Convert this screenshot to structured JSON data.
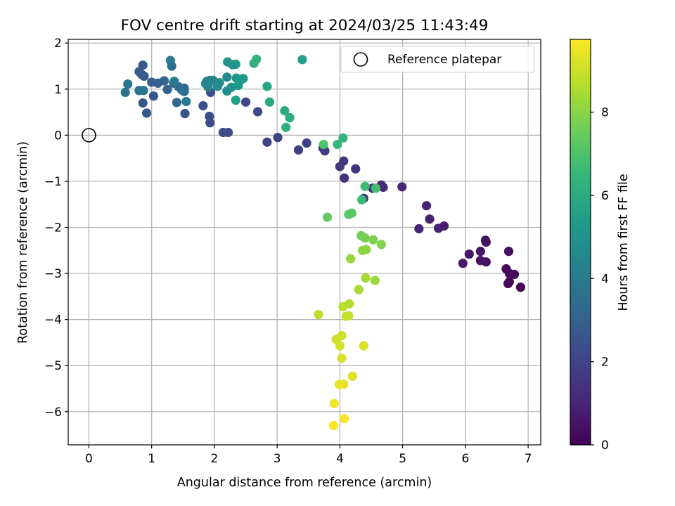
{
  "chart_data": {
    "type": "scatter",
    "title": "FOV centre drift starting at 2024/03/25 11:43:49",
    "xlabel": "Angular distance from reference (arcmin)",
    "ylabel": "Rotation from reference (arcmin)",
    "xlim": [
      -0.33,
      7.2
    ],
    "ylim": [
      -6.72,
      2.08
    ],
    "xticks": [
      0,
      1,
      2,
      3,
      4,
      5,
      6,
      7
    ],
    "yticks": [
      2,
      1,
      0,
      -1,
      -2,
      -3,
      -4,
      -5,
      -6
    ],
    "ytick_labels": [
      "2",
      "1",
      "0",
      "−1",
      "−2",
      "−3",
      "−4",
      "−5",
      "−6"
    ],
    "grid": true,
    "legend": {
      "position": "top-right",
      "entries": [
        "Reference platepar"
      ]
    },
    "reference_point": {
      "x": 0,
      "y": 0
    },
    "colorbar": {
      "label": "Hours from first FF file",
      "range": [
        0,
        9.75
      ],
      "ticks": [
        0,
        2,
        4,
        6,
        8
      ],
      "colormap": "viridis",
      "stops": [
        "#440154",
        "#482878",
        "#3e4989",
        "#31688e",
        "#26828e",
        "#1f9e89",
        "#35b779",
        "#6ece58",
        "#b5de2b",
        "#fde725"
      ]
    },
    "points": [
      {
        "x": 6.88,
        "y": -3.3,
        "h": 0.1
      },
      {
        "x": 6.7,
        "y": -3.18,
        "h": 0.15
      },
      {
        "x": 6.68,
        "y": -3.22,
        "h": 0.2
      },
      {
        "x": 6.78,
        "y": -3.02,
        "h": 0.25
      },
      {
        "x": 6.7,
        "y": -3.0,
        "h": 0.28
      },
      {
        "x": 6.65,
        "y": -2.9,
        "h": 0.3
      },
      {
        "x": 6.69,
        "y": -2.52,
        "h": 0.35
      },
      {
        "x": 6.33,
        "y": -2.32,
        "h": 0.4
      },
      {
        "x": 6.32,
        "y": -2.28,
        "h": 0.45
      },
      {
        "x": 6.33,
        "y": -2.75,
        "h": 0.5
      },
      {
        "x": 6.24,
        "y": -2.72,
        "h": 0.55
      },
      {
        "x": 6.24,
        "y": -2.52,
        "h": 0.6
      },
      {
        "x": 6.06,
        "y": -2.58,
        "h": 0.65
      },
      {
        "x": 5.96,
        "y": -2.78,
        "h": 0.7
      },
      {
        "x": 5.66,
        "y": -1.97,
        "h": 0.8
      },
      {
        "x": 5.57,
        "y": -2.02,
        "h": 0.85
      },
      {
        "x": 5.43,
        "y": -1.82,
        "h": 0.9
      },
      {
        "x": 5.38,
        "y": -1.53,
        "h": 0.95
      },
      {
        "x": 5.26,
        "y": -2.03,
        "h": 1.0
      },
      {
        "x": 4.99,
        "y": -1.12,
        "h": 1.1
      },
      {
        "x": 4.69,
        "y": -1.13,
        "h": 1.15
      },
      {
        "x": 4.66,
        "y": -1.08,
        "h": 1.2
      },
      {
        "x": 4.52,
        "y": -1.15,
        "h": 1.25
      },
      {
        "x": 4.38,
        "y": -1.37,
        "h": 1.3
      },
      {
        "x": 4.25,
        "y": -0.73,
        "h": 1.4
      },
      {
        "x": 4.07,
        "y": -0.93,
        "h": 1.45
      },
      {
        "x": 4.06,
        "y": -0.56,
        "h": 1.5
      },
      {
        "x": 4.0,
        "y": -0.68,
        "h": 1.55
      },
      {
        "x": 3.76,
        "y": -0.34,
        "h": 1.65
      },
      {
        "x": 3.73,
        "y": -0.28,
        "h": 1.7
      },
      {
        "x": 3.47,
        "y": -0.17,
        "h": 1.8
      },
      {
        "x": 3.34,
        "y": -0.32,
        "h": 1.85
      },
      {
        "x": 3.01,
        "y": -0.05,
        "h": 1.95
      },
      {
        "x": 2.84,
        "y": -0.15,
        "h": 2.0
      },
      {
        "x": 2.69,
        "y": 0.51,
        "h": 2.1
      },
      {
        "x": 2.5,
        "y": 0.72,
        "h": 2.15
      },
      {
        "x": 2.22,
        "y": 0.06,
        "h": 2.2
      },
      {
        "x": 2.14,
        "y": 0.06,
        "h": 2.25
      },
      {
        "x": 1.93,
        "y": 0.27,
        "h": 2.3
      },
      {
        "x": 1.92,
        "y": 0.41,
        "h": 2.35
      },
      {
        "x": 1.94,
        "y": 0.93,
        "h": 2.4
      },
      {
        "x": 1.82,
        "y": 0.64,
        "h": 2.45
      },
      {
        "x": 1.53,
        "y": 0.47,
        "h": 2.55
      },
      {
        "x": 1.03,
        "y": 0.85,
        "h": 2.6
      },
      {
        "x": 0.92,
        "y": 0.48,
        "h": 2.65
      },
      {
        "x": 0.86,
        "y": 0.7,
        "h": 2.7
      },
      {
        "x": 0.86,
        "y": 1.52,
        "h": 2.75
      },
      {
        "x": 0.88,
        "y": 1.28,
        "h": 2.8
      },
      {
        "x": 0.8,
        "y": 1.38,
        "h": 2.85
      },
      {
        "x": 0.84,
        "y": 1.32,
        "h": 2.9
      },
      {
        "x": 1.0,
        "y": 1.15,
        "h": 2.95
      },
      {
        "x": 1.1,
        "y": 1.13,
        "h": 3.0
      },
      {
        "x": 1.25,
        "y": 0.99,
        "h": 3.05
      },
      {
        "x": 1.2,
        "y": 1.18,
        "h": 3.1
      },
      {
        "x": 1.35,
        "y": 1.13,
        "h": 3.2
      },
      {
        "x": 1.52,
        "y": 1.02,
        "h": 3.25
      },
      {
        "x": 1.52,
        "y": 0.95,
        "h": 3.3
      },
      {
        "x": 1.4,
        "y": 0.71,
        "h": 3.35
      },
      {
        "x": 1.43,
        "y": 1.05,
        "h": 3.4
      },
      {
        "x": 1.48,
        "y": 0.98,
        "h": 3.5
      },
      {
        "x": 1.32,
        "y": 1.5,
        "h": 3.6
      },
      {
        "x": 0.8,
        "y": 0.97,
        "h": 3.65
      },
      {
        "x": 0.87,
        "y": 0.97,
        "h": 3.7
      },
      {
        "x": 0.58,
        "y": 0.93,
        "h": 3.75
      },
      {
        "x": 0.62,
        "y": 1.11,
        "h": 3.8
      },
      {
        "x": 1.3,
        "y": 1.62,
        "h": 3.9
      },
      {
        "x": 1.36,
        "y": 1.17,
        "h": 4.0
      },
      {
        "x": 1.55,
        "y": 0.73,
        "h": 4.1
      },
      {
        "x": 1.88,
        "y": 1.17,
        "h": 4.2
      },
      {
        "x": 1.86,
        "y": 1.12,
        "h": 4.3
      },
      {
        "x": 1.93,
        "y": 1.19,
        "h": 4.35
      },
      {
        "x": 1.98,
        "y": 1.19,
        "h": 4.45
      },
      {
        "x": 1.9,
        "y": 1.05,
        "h": 4.5
      },
      {
        "x": 2.05,
        "y": 1.06,
        "h": 4.55
      },
      {
        "x": 2.08,
        "y": 1.14,
        "h": 4.65
      },
      {
        "x": 2.2,
        "y": 1.26,
        "h": 4.7
      },
      {
        "x": 2.2,
        "y": 0.96,
        "h": 4.8
      },
      {
        "x": 2.27,
        "y": 1.04,
        "h": 4.9
      },
      {
        "x": 2.21,
        "y": 1.59,
        "h": 4.95
      },
      {
        "x": 2.29,
        "y": 1.53,
        "h": 5.05
      },
      {
        "x": 2.34,
        "y": 1.54,
        "h": 5.1
      },
      {
        "x": 2.35,
        "y": 1.24,
        "h": 5.15
      },
      {
        "x": 2.42,
        "y": 1.2,
        "h": 5.25
      },
      {
        "x": 2.46,
        "y": 1.23,
        "h": 5.3
      },
      {
        "x": 2.38,
        "y": 1.08,
        "h": 5.35
      },
      {
        "x": 2.34,
        "y": 0.76,
        "h": 5.45
      },
      {
        "x": 3.4,
        "y": 1.64,
        "h": 5.5
      },
      {
        "x": 2.84,
        "y": 1.06,
        "h": 5.75
      },
      {
        "x": 2.88,
        "y": 0.72,
        "h": 5.85
      },
      {
        "x": 3.2,
        "y": 0.38,
        "h": 6.0
      },
      {
        "x": 3.12,
        "y": 0.53,
        "h": 6.05
      },
      {
        "x": 3.14,
        "y": 0.17,
        "h": 6.15
      },
      {
        "x": 2.63,
        "y": 1.56,
        "h": 6.2
      },
      {
        "x": 2.67,
        "y": 1.65,
        "h": 6.3
      },
      {
        "x": 4.05,
        "y": -0.06,
        "h": 6.35
      },
      {
        "x": 3.96,
        "y": -0.2,
        "h": 6.5
      },
      {
        "x": 4.35,
        "y": -1.4,
        "h": 6.6
      },
      {
        "x": 4.4,
        "y": -1.11,
        "h": 6.7
      },
      {
        "x": 4.57,
        "y": -1.15,
        "h": 6.8
      },
      {
        "x": 3.74,
        "y": -0.2,
        "h": 7.0
      },
      {
        "x": 4.19,
        "y": -1.69,
        "h": 7.1
      },
      {
        "x": 4.14,
        "y": -1.72,
        "h": 7.2
      },
      {
        "x": 3.8,
        "y": -1.78,
        "h": 7.4
      },
      {
        "x": 4.34,
        "y": -2.18,
        "h": 7.6
      },
      {
        "x": 4.4,
        "y": -2.23,
        "h": 7.7
      },
      {
        "x": 4.53,
        "y": -2.27,
        "h": 7.8
      },
      {
        "x": 4.66,
        "y": -2.37,
        "h": 7.9
      },
      {
        "x": 4.42,
        "y": -2.48,
        "h": 8.0
      },
      {
        "x": 4.36,
        "y": -2.5,
        "h": 8.1
      },
      {
        "x": 4.17,
        "y": -2.68,
        "h": 8.2
      },
      {
        "x": 4.56,
        "y": -3.15,
        "h": 8.3
      },
      {
        "x": 4.41,
        "y": -3.1,
        "h": 8.4
      },
      {
        "x": 4.3,
        "y": -3.35,
        "h": 8.5
      },
      {
        "x": 4.15,
        "y": -3.66,
        "h": 8.6
      },
      {
        "x": 4.05,
        "y": -3.72,
        "h": 8.7
      },
      {
        "x": 3.66,
        "y": -3.89,
        "h": 8.8
      },
      {
        "x": 4.1,
        "y": -3.93,
        "h": 8.85
      },
      {
        "x": 4.14,
        "y": -3.92,
        "h": 8.9
      },
      {
        "x": 4.03,
        "y": -4.35,
        "h": 9.0
      },
      {
        "x": 3.94,
        "y": -4.43,
        "h": 9.05
      },
      {
        "x": 4.0,
        "y": -4.57,
        "h": 9.1
      },
      {
        "x": 4.38,
        "y": -4.57,
        "h": 9.15
      },
      {
        "x": 4.03,
        "y": -4.84,
        "h": 9.2
      },
      {
        "x": 4.2,
        "y": -5.23,
        "h": 9.3
      },
      {
        "x": 4.06,
        "y": -5.4,
        "h": 9.4
      },
      {
        "x": 3.99,
        "y": -5.41,
        "h": 9.45
      },
      {
        "x": 3.91,
        "y": -5.82,
        "h": 9.55
      },
      {
        "x": 4.07,
        "y": -6.15,
        "h": 9.65
      },
      {
        "x": 3.9,
        "y": -6.3,
        "h": 9.7
      }
    ]
  }
}
